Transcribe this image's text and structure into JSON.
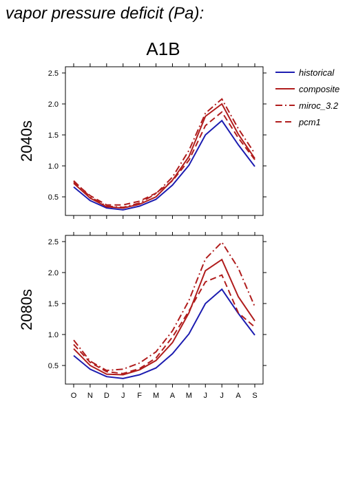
{
  "page": {
    "title": "vapor pressure deficit (Pa):"
  },
  "colors": {
    "historical": "#1c1cb0",
    "scenario": "#b01c1c"
  },
  "chart_data": {
    "type": "line",
    "title": "A1B",
    "months": [
      "O",
      "N",
      "D",
      "J",
      "F",
      "M",
      "A",
      "M",
      "J",
      "J",
      "A",
      "S"
    ],
    "ylim": [
      0.2,
      2.6
    ],
    "yticks": [
      0.5,
      1.0,
      1.5,
      2.0,
      2.5
    ],
    "ytick_labels": [
      "0.5",
      "1.0",
      "1.5",
      "2.0",
      "2.5"
    ],
    "grid": false,
    "legend_position": "right",
    "legend": [
      {
        "name": "historical",
        "color": "#1c1cb0",
        "dash": "solid"
      },
      {
        "name": "composite",
        "color": "#b01c1c",
        "dash": "solid"
      },
      {
        "name": "miroc_3.2",
        "color": "#b01c1c",
        "dash": "dashdot"
      },
      {
        "name": "pcm1",
        "color": "#b01c1c",
        "dash": "dashed"
      }
    ],
    "panels": [
      {
        "ylabel": "2040s",
        "series": [
          {
            "name": "historical",
            "values": [
              0.66,
              0.44,
              0.32,
              0.29,
              0.35,
              0.46,
              0.69,
              1.01,
              1.5,
              1.73,
              1.34,
              0.99
            ]
          },
          {
            "name": "composite",
            "values": [
              0.72,
              0.48,
              0.34,
              0.32,
              0.38,
              0.5,
              0.77,
              1.15,
              1.8,
              2.0,
              1.51,
              1.12
            ]
          },
          {
            "name": "miroc_3.2",
            "values": [
              0.76,
              0.5,
              0.35,
              0.33,
              0.4,
              0.55,
              0.82,
              1.25,
              1.85,
              2.08,
              1.6,
              1.2
            ]
          },
          {
            "name": "pcm1",
            "values": [
              0.74,
              0.52,
              0.37,
              0.37,
              0.43,
              0.56,
              0.76,
              1.09,
              1.65,
              1.87,
              1.45,
              1.1
            ]
          }
        ]
      },
      {
        "ylabel": "2080s",
        "series": [
          {
            "name": "historical",
            "values": [
              0.66,
              0.44,
              0.32,
              0.29,
              0.35,
              0.46,
              0.69,
              1.01,
              1.5,
              1.73,
              1.34,
              0.99
            ]
          },
          {
            "name": "composite",
            "values": [
              0.77,
              0.5,
              0.36,
              0.35,
              0.43,
              0.58,
              0.87,
              1.35,
              2.03,
              2.21,
              1.61,
              1.22
            ]
          },
          {
            "name": "miroc_3.2",
            "values": [
              0.91,
              0.57,
              0.42,
              0.44,
              0.54,
              0.72,
              1.06,
              1.55,
              2.22,
              2.49,
              2.07,
              1.45
            ]
          },
          {
            "name": "pcm1",
            "values": [
              0.84,
              0.55,
              0.4,
              0.37,
              0.45,
              0.62,
              0.96,
              1.38,
              1.85,
              1.96,
              1.35,
              1.12
            ]
          }
        ]
      }
    ]
  }
}
